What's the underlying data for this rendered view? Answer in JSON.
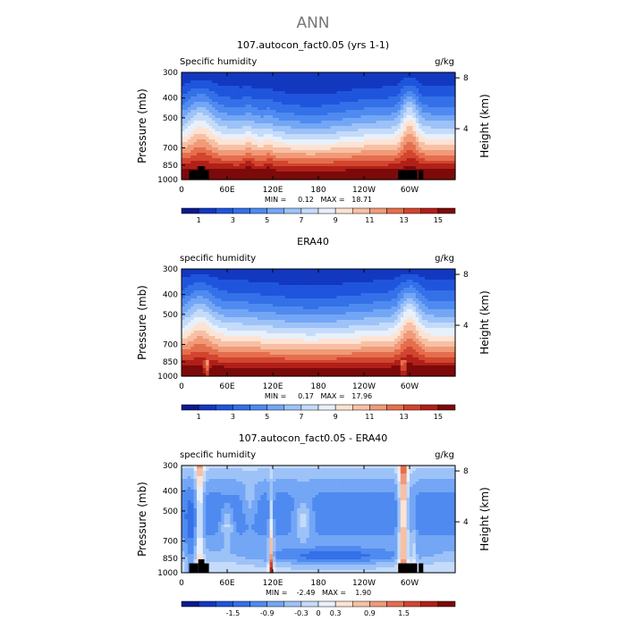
{
  "page_title": "ANN",
  "colors": {
    "blue_red_scale": [
      "#0b1a8c",
      "#1338c0",
      "#1f55dd",
      "#3470e8",
      "#4f8af0",
      "#73a6f5",
      "#9dc2f8",
      "#c4dbfa",
      "#e8f0fb",
      "#fde3d3",
      "#f7c0a4",
      "#f09a78",
      "#e56e4e",
      "#d2452e",
      "#b02018",
      "#7c0a0a"
    ],
    "terrain": "#000000"
  },
  "chart_data": [
    {
      "type": "heatmap",
      "id": "model",
      "title": "107.autocon_fact0.05 (yrs 1-1)",
      "left_label": "Specific humidity",
      "units": "g/kg",
      "ylabel": "Pressure (mb)",
      "y2label": "Height (km)",
      "x_ticks": [
        "0",
        "60E",
        "120E",
        "180",
        "120W",
        "60W"
      ],
      "x_tick_positions_deg": [
        0,
        60,
        120,
        180,
        240,
        300
      ],
      "x_range_deg": [
        0,
        360
      ],
      "y_ticks": [
        "300",
        "400",
        "500",
        "700",
        "850",
        "1000"
      ],
      "y_tick_values": [
        300,
        400,
        500,
        700,
        850,
        1000
      ],
      "y_range_mb": [
        300,
        1000
      ],
      "height_ticks": [
        "8",
        "4"
      ],
      "height_tick_values": [
        8,
        4
      ],
      "min_max_text": "MIN =     0.12   MAX =   18.71",
      "min": 0.12,
      "max": 18.71,
      "colorbar_labels": [
        "1",
        "3",
        "5",
        "7",
        "9",
        "11",
        "13",
        "15"
      ],
      "colorbar_levels": [
        0,
        1,
        2,
        3,
        4,
        5,
        6,
        7,
        8,
        9,
        10,
        11,
        12,
        13,
        14,
        15,
        16
      ],
      "has_terrain": true
    },
    {
      "type": "heatmap",
      "id": "era40",
      "title": "ERA40",
      "left_label": "specific humidity",
      "units": "g/kg",
      "ylabel": "Pressure (mb)",
      "y2label": "Height (km)",
      "x_ticks": [
        "0",
        "60E",
        "120E",
        "180",
        "120W",
        "60W"
      ],
      "x_tick_positions_deg": [
        0,
        60,
        120,
        180,
        240,
        300
      ],
      "x_range_deg": [
        0,
        360
      ],
      "y_ticks": [
        "300",
        "400",
        "500",
        "700",
        "850",
        "1000"
      ],
      "y_tick_values": [
        300,
        400,
        500,
        700,
        850,
        1000
      ],
      "y_range_mb": [
        300,
        1000
      ],
      "height_ticks": [
        "8",
        "4"
      ],
      "height_tick_values": [
        8,
        4
      ],
      "min_max_text": "MIN =     0.17   MAX =   17.96",
      "min": 0.17,
      "max": 17.96,
      "colorbar_labels": [
        "1",
        "3",
        "5",
        "7",
        "9",
        "11",
        "13",
        "15"
      ],
      "colorbar_levels": [
        0,
        1,
        2,
        3,
        4,
        5,
        6,
        7,
        8,
        9,
        10,
        11,
        12,
        13,
        14,
        15,
        16
      ],
      "has_terrain": false
    },
    {
      "type": "heatmap",
      "id": "diff",
      "title": "107.autocon_fact0.05 - ERA40",
      "left_label": "specific humidity",
      "units": "g/kg",
      "ylabel": "Pressure (mb)",
      "y2label": "Height (km)",
      "x_ticks": [
        "0",
        "60E",
        "120E",
        "180",
        "120W",
        "60W"
      ],
      "x_tick_positions_deg": [
        0,
        60,
        120,
        180,
        240,
        300
      ],
      "x_range_deg": [
        0,
        360
      ],
      "y_ticks": [
        "300",
        "400",
        "500",
        "700",
        "850",
        "1000"
      ],
      "y_tick_values": [
        300,
        400,
        500,
        700,
        850,
        1000
      ],
      "y_range_mb": [
        300,
        1000
      ],
      "height_ticks": [
        "8",
        "4"
      ],
      "height_tick_values": [
        8,
        4
      ],
      "min_max_text": "MIN =    -2.49   MAX =    1.90",
      "min": -2.49,
      "max": 1.9,
      "colorbar_labels": [
        "-1.5",
        "-0.9",
        "-0.3",
        "0",
        "0.3",
        "0.9",
        "1.5"
      ],
      "colorbar_levels": [
        -2.4,
        -2.1,
        -1.8,
        -1.5,
        -1.2,
        -0.9,
        -0.6,
        -0.3,
        0,
        0.3,
        0.6,
        0.9,
        1.2,
        1.5,
        1.8,
        2.1,
        2.4
      ],
      "has_terrain": true
    }
  ]
}
